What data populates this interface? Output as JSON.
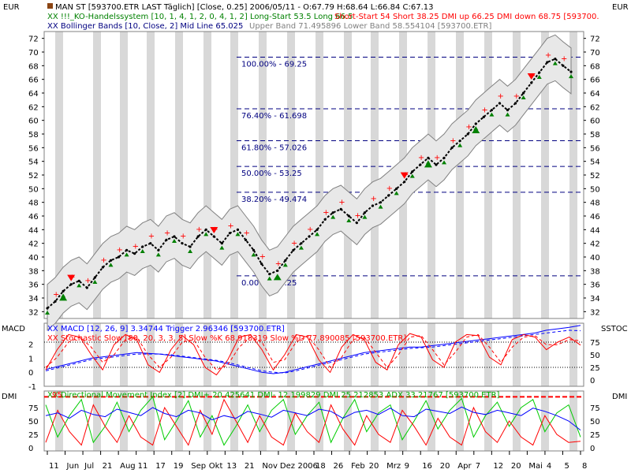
{
  "header": {
    "left_unit": "EUR",
    "right_unit": "EUR",
    "line1": "MAN ST [593700.ETR LAST Täglich] [Close, 0.25] 2006/05/11 - O:67.79 H:68.64 L:66.84 C:67.13",
    "line2_a": "XX !!!_KO-Handelssystem [10, 1, 4, 1, 2, 0, 4, 1, 2] Long-Start 53.5 Long 66.5",
    "line2_b": "Short-Start 54 Short 38.25 DMI up 66.25 DMI down 68.75 [593700.",
    "line3_a": "XX Bollinger Bands [10, Close, 2] Mid Line 65.025",
    "line3_b": "Upper Band 71.495896 Lower Band 58.554104 [593700.ETR]"
  },
  "macd_panel": {
    "left_label": "MACD",
    "right_label": "SSTOC",
    "legend1": "XX MACD [12, 26, 9] 3.34744 Trigger 2.96346 [593700.ETR]",
    "legend2": "XX Stochastic Slow [80, 20, 3, 3, 5] Slow %K 68.918319 Slow %D 77.890085 [593700.ETR]"
  },
  "dmi_panel": {
    "left_label": "DMI",
    "right_label": "DMI",
    "legend": "XX Directional Movement Index [2] DMI+ 20.425641 DMI- 12.199829 DMI 25.212853 ADX 33.21767 [593700.ETR]",
    "overlay": "95"
  },
  "colors": {
    "price": "#000000",
    "band": "#808080",
    "fib": "#000080",
    "long_marker": "#008000",
    "short_marker": "#ff0000",
    "macd": "#0000ff",
    "stoch": "#ff0000",
    "adx": "#0000ff",
    "dmi_plus": "#00cc00",
    "dmi_minus": "#ff0000",
    "stripe": "#d8d8d8"
  },
  "chart_data": [
    {
      "type": "line",
      "title": "MAN ST [593700.ETR LAST Täglich]",
      "ylim": [
        31,
        73
      ],
      "yticks": [
        32,
        34,
        36,
        38,
        40,
        42,
        44,
        46,
        48,
        50,
        52,
        54,
        56,
        58,
        60,
        62,
        64,
        66,
        68,
        70,
        72
      ],
      "x_labels": [
        "11",
        "Jun",
        "Jul",
        "21",
        "Aug",
        "11",
        "17",
        "19",
        "Sep",
        "Okt",
        "13",
        "21",
        "Nov",
        "Dez",
        "2006",
        "18",
        "26",
        "Feb",
        "20",
        "Mrz",
        "9",
        "16",
        "20",
        "Apr",
        "7",
        "12",
        "20",
        "Mai",
        "4",
        "5",
        "8"
      ],
      "series": [
        {
          "name": "Close",
          "values": [
            32.5,
            33.5,
            35,
            36,
            36.5,
            35.5,
            37,
            38.5,
            39.5,
            40,
            41,
            40.5,
            41.5,
            42,
            41,
            42.5,
            43,
            42,
            41.5,
            43,
            44,
            43,
            42,
            43.5,
            44,
            42.5,
            41,
            39,
            37.5,
            38,
            39.5,
            41,
            42,
            43,
            44,
            45.5,
            46.5,
            47,
            46,
            45,
            46.5,
            47.5,
            48,
            49,
            50,
            51,
            52.5,
            53.5,
            54.5,
            53.5,
            54.5,
            56,
            57,
            58,
            59.5,
            60.5,
            61.5,
            62.5,
            61.5,
            62.5,
            64,
            65.5,
            67,
            68.5,
            69,
            68,
            67.1
          ]
        }
      ],
      "fib_levels": [
        {
          "label": "100.00% - 69.25",
          "value": 69.25
        },
        {
          "label": "76.40% - 61.698",
          "value": 61.698
        },
        {
          "label": "61.80% - 57.026",
          "value": 57.026
        },
        {
          "label": "50.00% - 53.25",
          "value": 53.25
        },
        {
          "label": "38.20% - 49.474",
          "value": 49.474
        },
        {
          "label": "0.00% - 37.25",
          "value": 37.25
        }
      ],
      "short_signals": [
        3,
        21,
        45,
        61
      ],
      "long_signals": [
        2,
        29,
        48,
        54
      ]
    },
    {
      "type": "line",
      "title": "MACD / Stochastic Slow",
      "ylim": [
        -1,
        3.5
      ],
      "macd_ticks": [
        -1,
        0,
        1,
        2
      ],
      "stoch_ticks": [
        0,
        25,
        50,
        75
      ],
      "series": [
        {
          "name": "MACD",
          "values": [
            0.2,
            0.4,
            0.6,
            0.8,
            1.0,
            1.1,
            1.2,
            1.3,
            1.4,
            1.35,
            1.3,
            1.2,
            1.1,
            1.0,
            0.9,
            0.8,
            0.6,
            0.4,
            0.2,
            0.0,
            -0.1,
            0.0,
            0.2,
            0.4,
            0.6,
            0.8,
            1.0,
            1.2,
            1.4,
            1.5,
            1.6,
            1.7,
            1.8,
            1.8,
            1.9,
            2.0,
            2.1,
            2.2,
            2.3,
            2.4,
            2.5,
            2.6,
            2.7,
            2.8,
            3.0,
            3.1,
            3.2,
            3.35
          ]
        },
        {
          "name": "Trigger",
          "values": [
            0.1,
            0.3,
            0.5,
            0.7,
            0.9,
            1.0,
            1.1,
            1.2,
            1.3,
            1.3,
            1.3,
            1.25,
            1.15,
            1.05,
            0.95,
            0.85,
            0.7,
            0.5,
            0.3,
            0.1,
            0.0,
            -0.05,
            0.1,
            0.3,
            0.5,
            0.7,
            0.9,
            1.1,
            1.3,
            1.4,
            1.5,
            1.6,
            1.7,
            1.75,
            1.8,
            1.9,
            2.0,
            2.1,
            2.2,
            2.3,
            2.4,
            2.5,
            2.6,
            2.7,
            2.8,
            2.9,
            3.0,
            2.96
          ]
        },
        {
          "name": "Slow %K",
          "values": [
            20,
            60,
            90,
            85,
            50,
            20,
            70,
            90,
            80,
            30,
            15,
            60,
            88,
            70,
            25,
            10,
            40,
            85,
            90,
            60,
            20,
            50,
            90,
            85,
            40,
            15,
            65,
            90,
            80,
            35,
            20,
            70,
            92,
            85,
            40,
            25,
            75,
            90,
            88,
            45,
            30,
            80,
            90,
            85,
            60,
            75,
            85,
            69
          ]
        },
        {
          "name": "Slow %D",
          "values": [
            25,
            45,
            75,
            85,
            65,
            35,
            50,
            80,
            85,
            50,
            25,
            45,
            75,
            80,
            45,
            20,
            30,
            65,
            85,
            75,
            35,
            40,
            75,
            88,
            60,
            25,
            45,
            80,
            85,
            55,
            25,
            50,
            85,
            88,
            60,
            30,
            55,
            85,
            90,
            65,
            35,
            65,
            85,
            88,
            70,
            70,
            80,
            78
          ]
        }
      ]
    },
    {
      "type": "line",
      "title": "Directional Movement Index",
      "ylim": [
        0,
        100
      ],
      "yticks": [
        0,
        25,
        50,
        75
      ],
      "series": [
        {
          "name": "DMI+",
          "values": [
            80,
            20,
            60,
            90,
            10,
            40,
            85,
            30,
            70,
            95,
            15,
            50,
            88,
            20,
            60,
            5,
            40,
            80,
            30,
            70,
            90,
            25,
            60,
            85,
            10,
            55,
            90,
            30,
            65,
            80,
            15,
            50,
            88,
            35,
            70,
            92,
            20,
            60,
            85,
            40,
            75,
            90,
            30,
            65,
            80,
            20
          ]
        },
        {
          "name": "DMI-",
          "values": [
            10,
            70,
            30,
            5,
            80,
            40,
            10,
            60,
            20,
            5,
            75,
            40,
            5,
            70,
            25,
            90,
            50,
            10,
            60,
            20,
            5,
            65,
            30,
            10,
            80,
            35,
            5,
            60,
            25,
            10,
            70,
            40,
            5,
            55,
            20,
            5,
            75,
            30,
            10,
            50,
            20,
            5,
            60,
            25,
            10,
            12
          ]
        },
        {
          "name": "ADX",
          "values": [
            60,
            65,
            55,
            70,
            62,
            58,
            72,
            66,
            60,
            75,
            64,
            58,
            70,
            65,
            52,
            60,
            55,
            68,
            63,
            57,
            70,
            65,
            60,
            72,
            68,
            55,
            66,
            70,
            62,
            74,
            60,
            58,
            72,
            68,
            64,
            76,
            66,
            62,
            70,
            65,
            60,
            74,
            68,
            60,
            50,
            33
          ]
        }
      ],
      "reference_line": 95
    }
  ]
}
